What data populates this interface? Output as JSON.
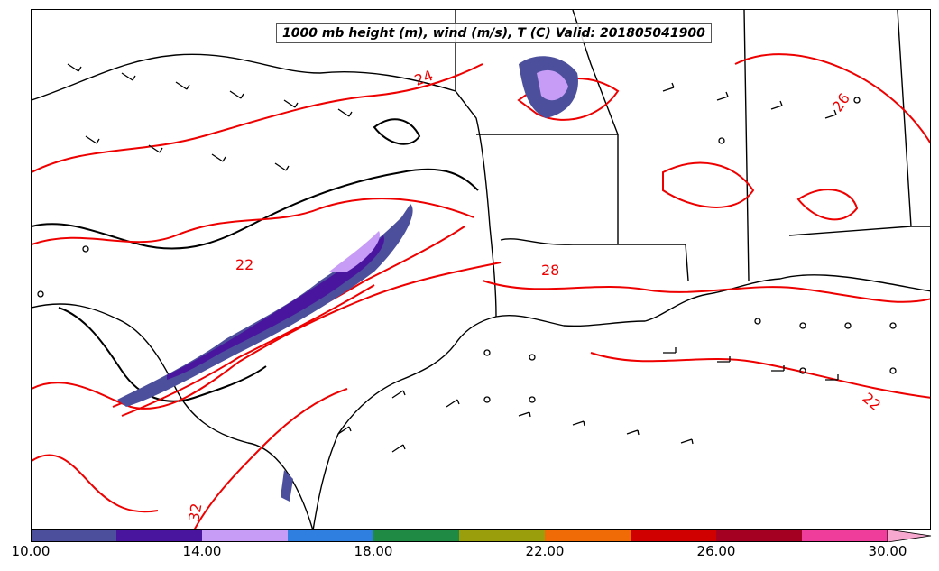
{
  "title": "1000 mb height (m), wind (m/s), T (C) Valid: 201805041900",
  "contour_labels": [
    "24",
    "22",
    "28",
    "26",
    "22",
    "32"
  ],
  "colorbar": {
    "ticks": [
      "10.00",
      "14.00",
      "18.00",
      "22.00",
      "26.00",
      "30.00"
    ],
    "min": 10,
    "max": 31,
    "colors": [
      "#4b4f9c",
      "#4a159e",
      "#c79cf7",
      "#2f7fe0",
      "#1f8a43",
      "#9a9e0d",
      "#f06b05",
      "#d10000",
      "#a30022",
      "#ef3d9c",
      "#f7a8cf"
    ],
    "extend": "max"
  }
}
